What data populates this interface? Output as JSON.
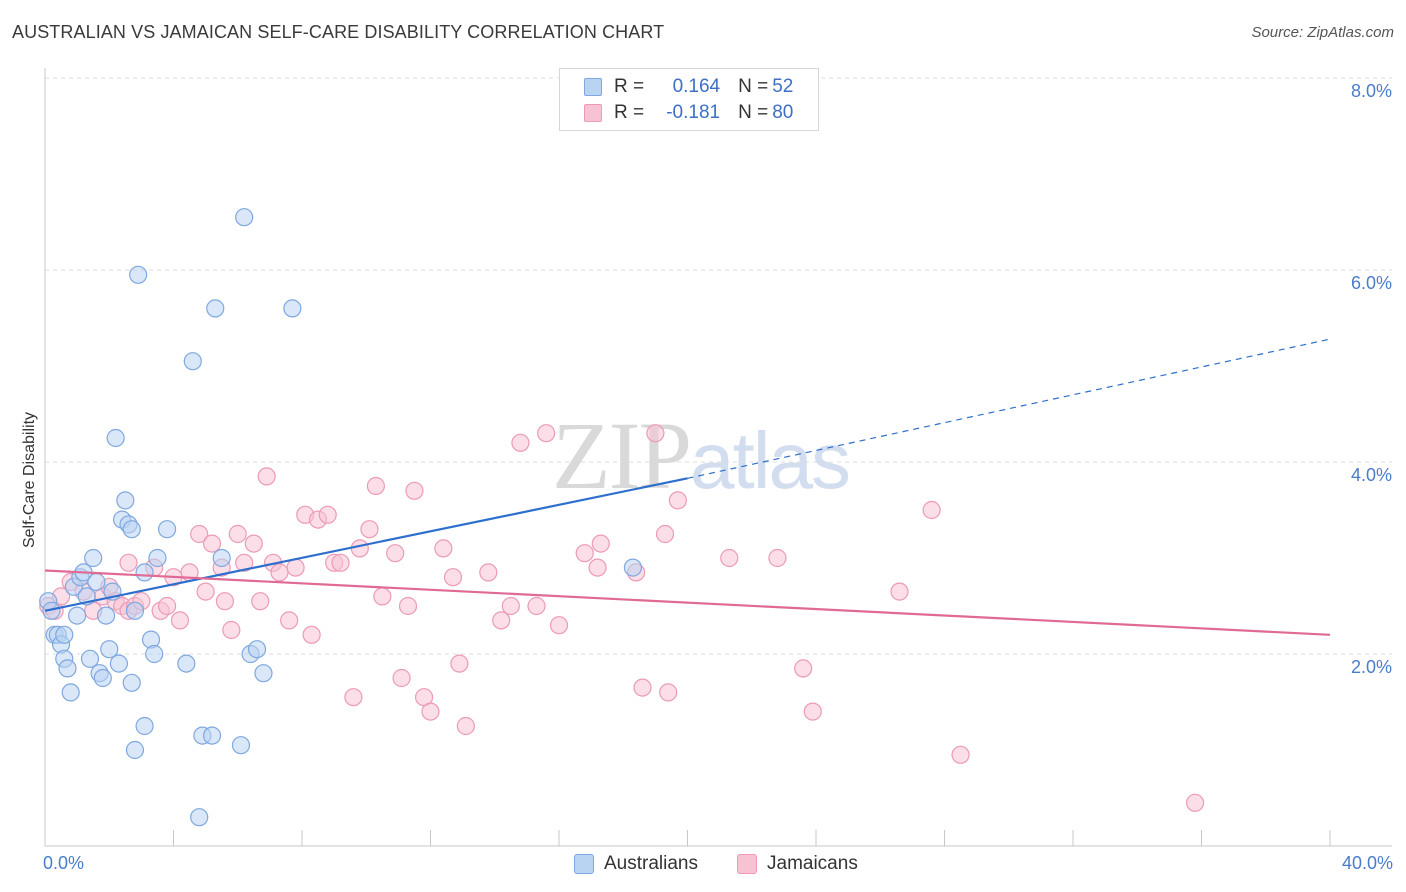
{
  "title": "AUSTRALIAN VS JAMAICAN SELF-CARE DISABILITY CORRELATION CHART",
  "source": "Source: ZipAtlas.com",
  "watermark": {
    "part1": "ZIP",
    "part2": "atlas"
  },
  "colors": {
    "australians_fill": "#b9d3f3",
    "australians_stroke": "#7ea8df",
    "australians_line": "#2e6fce",
    "jamaicans_fill": "#f7c3d3",
    "jamaicans_stroke": "#ec9ab5",
    "jamaicans_line": "#e06996",
    "tick_text": "#4a7cc9",
    "grid": "#dcdcdc"
  },
  "legend": {
    "rows": [
      {
        "r_label": "R =",
        "r_value": "0.164",
        "n_label": "N =",
        "n_value": "52"
      },
      {
        "r_label": "R =",
        "r_value": "-0.181",
        "n_label": "N =",
        "n_value": "80"
      }
    ]
  },
  "bottom_legend": {
    "australians": "Australians",
    "jamaicans": "Jamaicans"
  },
  "chart_data": {
    "type": "scatter",
    "ylabel": "Self-Care Disability",
    "xlim": [
      0,
      40
    ],
    "ylim": [
      0,
      8
    ],
    "y_ticks": [
      {
        "value": 2,
        "label": "2.0%"
      },
      {
        "value": 4,
        "label": "4.0%"
      },
      {
        "value": 6,
        "label": "6.0%"
      },
      {
        "value": 8,
        "label": "8.0%"
      }
    ],
    "x_ticks": [
      {
        "value": 0,
        "label": "0.0%"
      },
      {
        "value": 40,
        "label": "40.0%"
      }
    ],
    "x_minor_ticks": [
      0,
      4,
      8,
      12,
      16,
      20,
      24,
      28,
      32,
      36,
      40
    ],
    "grid": true,
    "legend_position": "top-center",
    "series": [
      {
        "name": "Australians",
        "trend": {
          "x0": 0,
          "y0": 2.45,
          "x1": 20,
          "y1": 3.83,
          "dash_to_x": 40,
          "dash_to_y": 5.28
        },
        "points": [
          [
            0.1,
            2.55
          ],
          [
            0.2,
            2.45
          ],
          [
            0.3,
            2.2
          ],
          [
            0.4,
            2.2
          ],
          [
            0.5,
            2.1
          ],
          [
            0.6,
            1.95
          ],
          [
            0.7,
            1.85
          ],
          [
            0.8,
            1.6
          ],
          [
            0.9,
            2.7
          ],
          [
            1.0,
            2.4
          ],
          [
            1.1,
            2.8
          ],
          [
            1.2,
            2.85
          ],
          [
            1.3,
            2.6
          ],
          [
            1.4,
            1.95
          ],
          [
            1.5,
            3.0
          ],
          [
            1.6,
            2.75
          ],
          [
            1.7,
            1.8
          ],
          [
            1.8,
            1.75
          ],
          [
            1.9,
            2.4
          ],
          [
            2.0,
            2.05
          ],
          [
            2.1,
            2.65
          ],
          [
            2.2,
            4.25
          ],
          [
            2.3,
            1.9
          ],
          [
            2.4,
            3.4
          ],
          [
            2.5,
            3.6
          ],
          [
            2.6,
            3.35
          ],
          [
            2.7,
            1.7
          ],
          [
            2.8,
            2.45
          ],
          [
            2.7,
            3.3
          ],
          [
            2.8,
            1.0
          ],
          [
            2.9,
            5.95
          ],
          [
            3.1,
            1.25
          ],
          [
            3.1,
            2.85
          ],
          [
            3.3,
            2.15
          ],
          [
            3.4,
            2.0
          ],
          [
            3.5,
            3.0
          ],
          [
            3.8,
            3.3
          ],
          [
            4.4,
            1.9
          ],
          [
            4.6,
            5.05
          ],
          [
            4.8,
            0.3
          ],
          [
            4.9,
            1.15
          ],
          [
            5.2,
            1.15
          ],
          [
            5.3,
            5.6
          ],
          [
            5.5,
            3.0
          ],
          [
            6.1,
            1.05
          ],
          [
            6.2,
            6.55
          ],
          [
            6.4,
            2.0
          ],
          [
            6.6,
            2.05
          ],
          [
            6.8,
            1.8
          ],
          [
            7.7,
            5.6
          ],
          [
            18.3,
            2.9
          ],
          [
            0.6,
            2.2
          ]
        ]
      },
      {
        "name": "Jamaicans",
        "trend": {
          "x0": 0,
          "y0": 2.87,
          "x1": 40,
          "y1": 2.2
        },
        "points": [
          [
            0.1,
            2.5
          ],
          [
            0.3,
            2.45
          ],
          [
            0.5,
            2.6
          ],
          [
            0.8,
            2.75
          ],
          [
            1.2,
            2.65
          ],
          [
            1.5,
            2.45
          ],
          [
            1.8,
            2.6
          ],
          [
            2.0,
            2.7
          ],
          [
            2.2,
            2.55
          ],
          [
            2.4,
            2.5
          ],
          [
            2.6,
            2.45
          ],
          [
            2.6,
            2.95
          ],
          [
            2.8,
            2.5
          ],
          [
            3.0,
            2.55
          ],
          [
            3.4,
            2.9
          ],
          [
            3.6,
            2.45
          ],
          [
            3.8,
            2.5
          ],
          [
            4.0,
            2.8
          ],
          [
            4.2,
            2.35
          ],
          [
            4.5,
            2.85
          ],
          [
            4.8,
            3.25
          ],
          [
            5.0,
            2.65
          ],
          [
            5.2,
            3.15
          ],
          [
            5.5,
            2.9
          ],
          [
            5.6,
            2.55
          ],
          [
            5.8,
            2.25
          ],
          [
            6.0,
            3.25
          ],
          [
            6.2,
            2.95
          ],
          [
            6.5,
            3.15
          ],
          [
            6.7,
            2.55
          ],
          [
            6.9,
            3.85
          ],
          [
            7.1,
            2.95
          ],
          [
            7.3,
            2.85
          ],
          [
            7.6,
            2.35
          ],
          [
            7.8,
            2.9
          ],
          [
            8.1,
            3.45
          ],
          [
            8.3,
            2.2
          ],
          [
            8.5,
            3.4
          ],
          [
            8.8,
            3.45
          ],
          [
            9.0,
            2.95
          ],
          [
            9.2,
            2.95
          ],
          [
            9.6,
            1.55
          ],
          [
            9.8,
            3.1
          ],
          [
            10.1,
            3.3
          ],
          [
            10.3,
            3.75
          ],
          [
            10.5,
            2.6
          ],
          [
            10.9,
            3.05
          ],
          [
            11.1,
            1.75
          ],
          [
            11.3,
            2.5
          ],
          [
            11.5,
            3.7
          ],
          [
            11.8,
            1.55
          ],
          [
            12.0,
            1.4
          ],
          [
            12.4,
            3.1
          ],
          [
            12.7,
            2.8
          ],
          [
            12.9,
            1.9
          ],
          [
            13.1,
            1.25
          ],
          [
            13.8,
            2.85
          ],
          [
            14.2,
            2.35
          ],
          [
            14.5,
            2.5
          ],
          [
            14.8,
            4.2
          ],
          [
            15.3,
            2.5
          ],
          [
            15.6,
            4.3
          ],
          [
            16.0,
            2.3
          ],
          [
            16.8,
            3.05
          ],
          [
            17.2,
            2.9
          ],
          [
            17.3,
            3.15
          ],
          [
            18.4,
            2.85
          ],
          [
            18.6,
            1.65
          ],
          [
            19.0,
            4.3
          ],
          [
            19.3,
            3.25
          ],
          [
            19.4,
            1.6
          ],
          [
            19.7,
            3.6
          ],
          [
            21.3,
            3.0
          ],
          [
            22.8,
            3.0
          ],
          [
            23.6,
            1.85
          ],
          [
            23.9,
            1.4
          ],
          [
            26.6,
            2.65
          ],
          [
            27.6,
            3.5
          ],
          [
            28.5,
            0.95
          ],
          [
            35.8,
            0.45
          ]
        ]
      }
    ]
  }
}
